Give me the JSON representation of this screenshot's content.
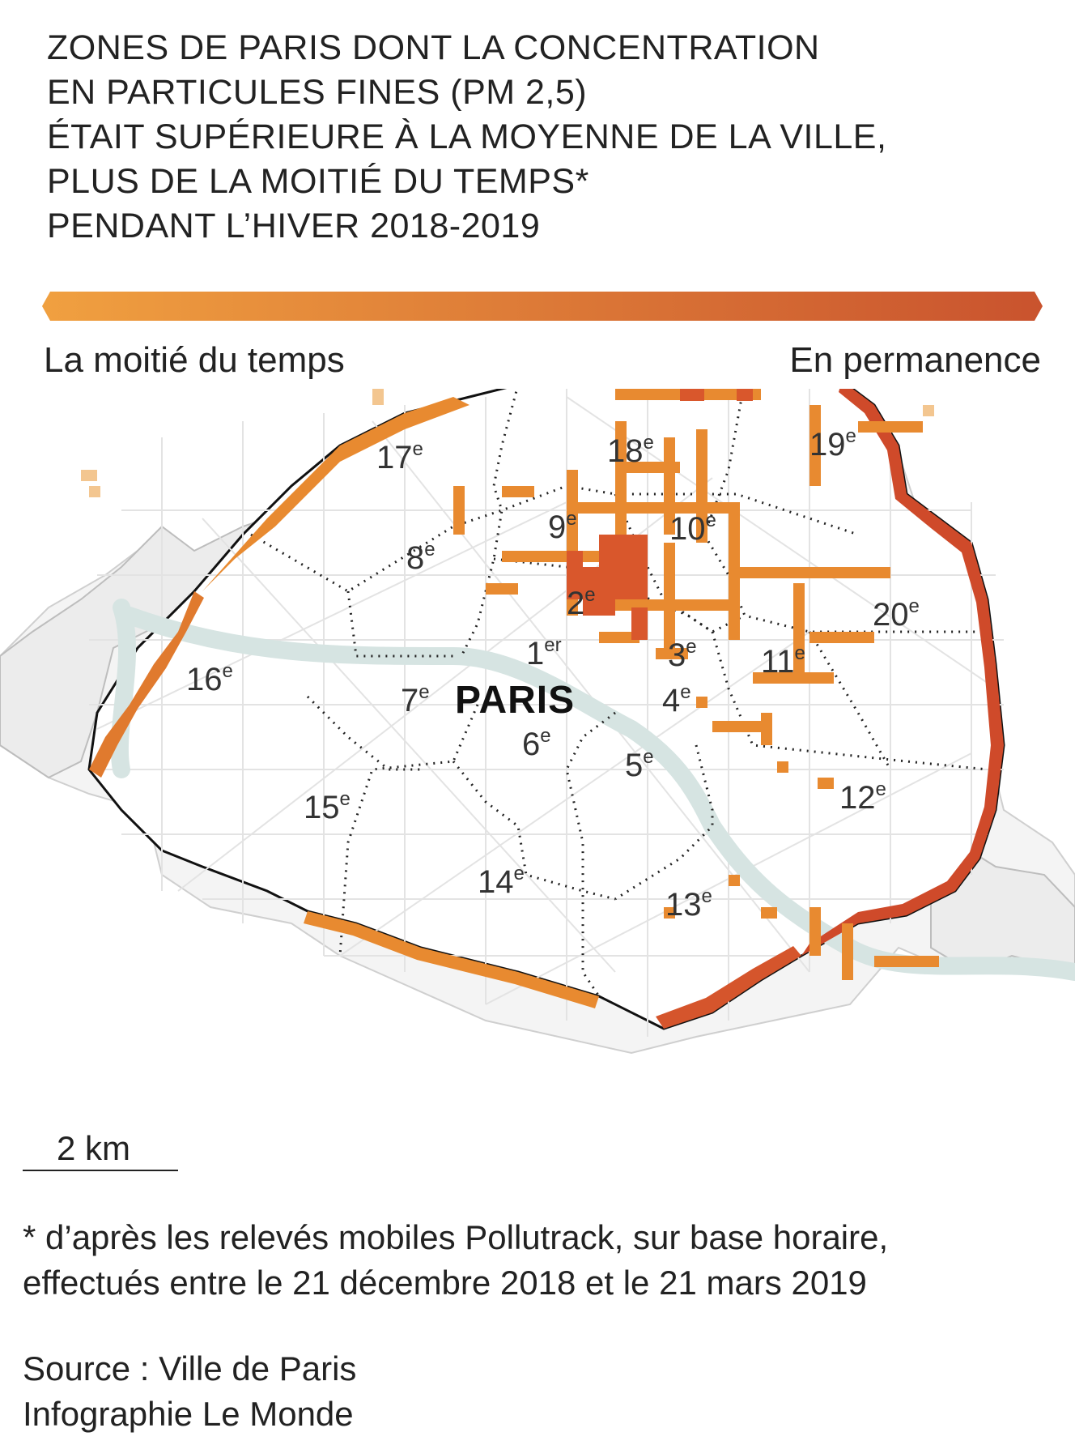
{
  "title": {
    "lines": [
      "ZONES DE PARIS DONT LA CONCENTRATION",
      "EN PARTICULES FINES (PM 2,5)",
      "ÉTAIT SUPÉRIEURE À LA MOYENNE DE LA VILLE,",
      "PLUS DE LA MOITIÉ DU TEMPS*",
      "PENDANT L’HIVER 2018-2019"
    ]
  },
  "legend": {
    "low_label": "La moitié du temps",
    "high_label": "En permanence",
    "gradient_start_color": "#f0a040",
    "gradient_end_color": "#c9532e"
  },
  "map": {
    "city_label": "PARIS",
    "arrondissements": [
      {
        "num": "1",
        "sup": "er"
      },
      {
        "num": "2",
        "sup": "e"
      },
      {
        "num": "3",
        "sup": "e"
      },
      {
        "num": "4",
        "sup": "e"
      },
      {
        "num": "5",
        "sup": "e"
      },
      {
        "num": "6",
        "sup": "e"
      },
      {
        "num": "7",
        "sup": "e"
      },
      {
        "num": "8",
        "sup": "e"
      },
      {
        "num": "9",
        "sup": "e"
      },
      {
        "num": "10",
        "sup": "e"
      },
      {
        "num": "11",
        "sup": "e"
      },
      {
        "num": "12",
        "sup": "e"
      },
      {
        "num": "13",
        "sup": "e"
      },
      {
        "num": "14",
        "sup": "e"
      },
      {
        "num": "15",
        "sup": "e"
      },
      {
        "num": "16",
        "sup": "e"
      },
      {
        "num": "17",
        "sup": "e"
      },
      {
        "num": "18",
        "sup": "e"
      },
      {
        "num": "19",
        "sup": "e"
      },
      {
        "num": "20",
        "sup": "e"
      }
    ],
    "colors": {
      "pollution_mid": "#e88a30",
      "pollution_high": "#cf4a2a",
      "seine": "#d6e4e2",
      "boundary": "#111111"
    }
  },
  "scale": {
    "label": "2 km"
  },
  "footnote": {
    "lines": [
      "* d’après les relevés mobiles Pollutrack, sur base horaire,",
      "effectués entre le 21 décembre 2018 et le 21 mars 2019"
    ]
  },
  "credits": {
    "source": "Source : Ville de Paris",
    "infographie": "Infographie Le Monde"
  }
}
